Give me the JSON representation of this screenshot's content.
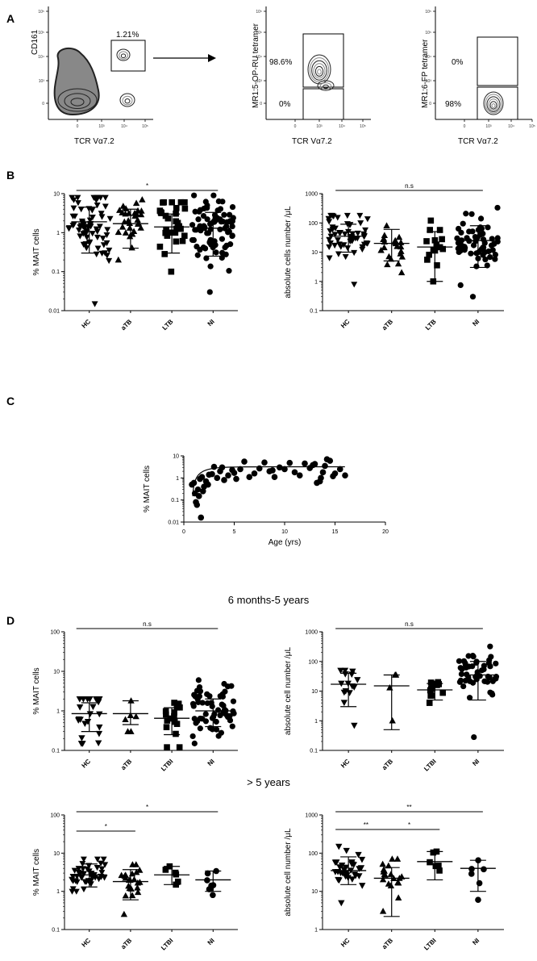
{
  "panels": {
    "a": "A",
    "b": "B",
    "c": "C",
    "d": "D"
  },
  "panel_a": {
    "plot1": {
      "xlabel": "TCR Vα7.2",
      "ylabel": "CD161",
      "gate_pct": "1.21%"
    },
    "plot2": {
      "xlabel": "TCR Vα7.2",
      "ylabel": "MR1:5-OP-RU tetramer",
      "upper_pct": "98.6%",
      "lower_pct": "0%"
    },
    "plot3": {
      "xlabel": "TCR Vα7.2",
      "ylabel": "MR1:6-FP tetramer",
      "upper_pct": "0%",
      "lower_pct": "98%"
    },
    "tick_labels": {
      "zero": "0",
      "e3": "10³",
      "e4": "10⁴",
      "e5": "10⁵"
    }
  },
  "section_headers": {
    "young": "6 months-5 years",
    "old": "> 5 years"
  },
  "colors": {
    "ink": "#000000",
    "flow_dark": "#222222",
    "flow_light": "#888888"
  },
  "chart_data": [
    {
      "id": "B1",
      "type": "scatter",
      "ylabel": "% MAIT cells",
      "yscale": "log",
      "ylim": [
        0.01,
        10
      ],
      "yticks": [
        "0.01",
        "0.1",
        "1",
        "10"
      ],
      "categories": [
        "HC",
        "aTB",
        "LTB",
        "NI"
      ],
      "markers": [
        "tri-down",
        "tri-up",
        "square",
        "circle"
      ],
      "n": [
        70,
        30,
        30,
        85
      ],
      "center": [
        1.9,
        1.7,
        1.4,
        1.3
      ],
      "sd": [
        0.5,
        0.35,
        0.4,
        0.45
      ],
      "bars": [
        [
          0.3,
          4.5
        ],
        [
          0.4,
          4.0
        ],
        [
          0.3,
          3.0
        ],
        [
          0.25,
          3.3
        ]
      ],
      "clip": [
        [
          0.015,
          8
        ],
        [
          0.2,
          7
        ],
        [
          0.1,
          6
        ],
        [
          0.03,
          9
        ]
      ],
      "sig": [
        {
          "from": 0,
          "to": 3,
          "label": "*"
        }
      ]
    },
    {
      "id": "B2",
      "type": "scatter",
      "ylabel": "absolute cells number /μL",
      "yscale": "log",
      "ylim": [
        0.1,
        1000
      ],
      "yticks": [
        "0.1",
        "1",
        "10",
        "100",
        "1000"
      ],
      "categories": [
        "HC",
        "aTB",
        "LTB",
        "NI"
      ],
      "markers": [
        "tri-down",
        "tri-up",
        "square",
        "circle"
      ],
      "n": [
        55,
        22,
        15,
        60
      ],
      "center": [
        35,
        20,
        15,
        25
      ],
      "sd": [
        0.35,
        0.3,
        0.35,
        0.45
      ],
      "bars": [
        [
          10,
          90
        ],
        [
          5,
          60
        ],
        [
          1,
          50
        ],
        [
          3,
          80
        ]
      ],
      "clip": [
        [
          0.8,
          180
        ],
        [
          2,
          80
        ],
        [
          1,
          120
        ],
        [
          0.3,
          330
        ]
      ],
      "sig": [
        {
          "from": 0,
          "to": 3,
          "label": "n.s"
        }
      ]
    },
    {
      "id": "C",
      "type": "scatter",
      "ylabel": "% MAIT cells",
      "xlabel": "Age (yrs)",
      "xlim": [
        0,
        20
      ],
      "xticks": [
        "0",
        "5",
        "10",
        "15",
        "20"
      ],
      "yscale": "log",
      "ylim": [
        0.01,
        10
      ],
      "yticks": [
        "0.01",
        "0.1",
        "1",
        "10"
      ],
      "x": [
        0.8,
        1.0,
        1.1,
        1.2,
        1.3,
        1.4,
        1.5,
        1.6,
        1.7,
        1.8,
        2.0,
        2.2,
        2.5,
        2.8,
        3.0,
        3.3,
        3.6,
        4.0,
        4.4,
        4.8,
        5.2,
        5.6,
        6.0,
        6.5,
        7.0,
        7.5,
        8.0,
        8.5,
        9.0,
        9.5,
        10.0,
        10.5,
        11.0,
        11.5,
        12.0,
        12.5,
        13.0,
        13.2,
        13.5,
        13.8,
        14.0,
        14.2,
        14.5,
        14.8,
        15.0,
        15.5,
        16.0,
        1.9,
        2.4,
        3.8,
        5.0,
        8.8,
        12.8,
        13.6
      ],
      "y": [
        0.5,
        0.6,
        0.2,
        0.08,
        0.06,
        0.3,
        0.15,
        0.9,
        0.016,
        1.1,
        0.4,
        0.7,
        1.4,
        1.5,
        3.2,
        1.0,
        2.0,
        0.8,
        1.3,
        2.3,
        0.9,
        2.5,
        5.5,
        1.1,
        1.6,
        2.7,
        5.0,
        2.0,
        1.1,
        3.0,
        2.5,
        4.8,
        1.8,
        1.3,
        4.5,
        2.8,
        4.3,
        0.6,
        0.7,
        1.8,
        3.5,
        7.0,
        6.0,
        1.2,
        1.6,
        2.5,
        1.3,
        0.25,
        0.5,
        3.0,
        1.7,
        2.2,
        3.8,
        1.0
      ],
      "fit": {
        "asymptote": 3.2,
        "x0": 0.83,
        "k": 0.9
      }
    },
    {
      "id": "D1",
      "type": "scatter",
      "ylabel": "% MAIT cells",
      "yscale": "log",
      "ylim": [
        0.1,
        100
      ],
      "yticks": [
        "0.1",
        "1",
        "10",
        "100"
      ],
      "categories": [
        "HC",
        "aTB",
        "LTBI",
        "NI"
      ],
      "markers": [
        "tri-down",
        "tri-up",
        "square",
        "circle"
      ],
      "n": [
        22,
        6,
        16,
        60
      ],
      "center": [
        0.85,
        0.85,
        0.65,
        1.0
      ],
      "sd": [
        0.35,
        0.3,
        0.3,
        0.35
      ],
      "bars": [
        [
          0.3,
          1.6
        ],
        [
          0.45,
          1.8
        ],
        [
          0.25,
          1.2
        ],
        [
          0.4,
          2.0
        ]
      ],
      "clip": [
        [
          0.15,
          2
        ],
        [
          0.3,
          1.8
        ],
        [
          0.12,
          1.6
        ],
        [
          0.15,
          6
        ]
      ],
      "sig": [
        {
          "from": 0,
          "to": 3,
          "label": "n.s"
        }
      ]
    },
    {
      "id": "D2",
      "type": "scatter",
      "ylabel": "absolute cell number /μL",
      "yscale": "log",
      "ylim": [
        0.1,
        1000
      ],
      "yticks": [
        "0.1",
        "1",
        "10",
        "100",
        "1000"
      ],
      "categories": [
        "HC",
        "aTB",
        "LTBI",
        "NI"
      ],
      "markers": [
        "tri-down",
        "tri-up",
        "square",
        "circle"
      ],
      "n": [
        15,
        4,
        12,
        50
      ],
      "center": [
        17,
        15,
        11,
        35
      ],
      "sd": [
        0.3,
        0.4,
        0.2,
        0.4
      ],
      "bars": [
        [
          3,
          40
        ],
        [
          0.5,
          35
        ],
        [
          5,
          18
        ],
        [
          5,
          100
        ]
      ],
      "clip": [
        [
          0.7,
          50
        ],
        [
          1,
          35
        ],
        [
          4,
          20
        ],
        [
          0.28,
          320
        ]
      ],
      "sig": [
        {
          "from": 0,
          "to": 3,
          "label": "n.s"
        }
      ]
    },
    {
      "id": "D3",
      "type": "scatter",
      "ylabel": "% MAIT cells",
      "yscale": "log",
      "ylim": [
        0.1,
        100
      ],
      "yticks": [
        "0.1",
        "1",
        "10",
        "100"
      ],
      "categories": [
        "HC",
        "aTB",
        "LTBI",
        "NI"
      ],
      "markers": [
        "tri-down",
        "tri-up",
        "square",
        "circle"
      ],
      "n": [
        45,
        22,
        6,
        8
      ],
      "center": [
        2.7,
        1.8,
        2.7,
        2.0
      ],
      "sd": [
        0.2,
        0.3,
        0.12,
        0.18
      ],
      "bars": [
        [
          1.3,
          5.2
        ],
        [
          0.6,
          3.7
        ],
        [
          1.5,
          4.5
        ],
        [
          1.0,
          3.4
        ]
      ],
      "clip": [
        [
          1.0,
          7
        ],
        [
          0.25,
          5
        ],
        [
          1.5,
          4.5
        ],
        [
          0.8,
          3.4
        ]
      ],
      "sig": [
        {
          "from": 0,
          "to": 3,
          "label": "*"
        },
        {
          "from": 0,
          "to": 1,
          "label": "*"
        }
      ]
    },
    {
      "id": "D4",
      "type": "scatter",
      "ylabel": "absolute cell number /μL",
      "yscale": "log",
      "ylim": [
        1,
        1000
      ],
      "yticks": [
        "1",
        "10",
        "100",
        "1000"
      ],
      "categories": [
        "HC",
        "aTB",
        "LTBI",
        "NI"
      ],
      "markers": [
        "tri-down",
        "tri-up",
        "square",
        "circle"
      ],
      "n": [
        32,
        20,
        6,
        6
      ],
      "center": [
        35,
        22,
        60,
        40
      ],
      "sd": [
        0.22,
        0.25,
        0.15,
        0.25
      ],
      "bars": [
        [
          15,
          80
        ],
        [
          2.2,
          42
        ],
        [
          20,
          110
        ],
        [
          10,
          65
        ]
      ],
      "clip": [
        [
          5,
          150
        ],
        [
          3,
          70
        ],
        [
          35,
          110
        ],
        [
          6,
          65
        ]
      ],
      "sig": [
        {
          "from": 0,
          "to": 3,
          "label": "**"
        },
        {
          "from": 0,
          "to": 1,
          "label": "**"
        },
        {
          "from": 1,
          "to": 2,
          "label": "*"
        }
      ]
    }
  ]
}
